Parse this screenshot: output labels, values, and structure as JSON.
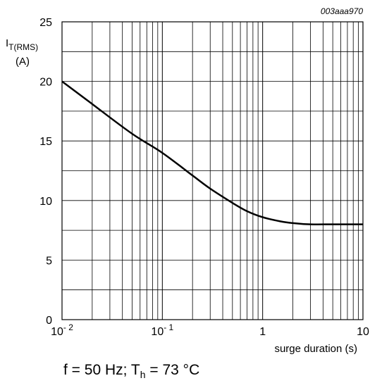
{
  "chart_data": {
    "type": "line",
    "figure_code": "003aaa970",
    "ylabel_main": "I",
    "ylabel_sub": "T(RMS)",
    "ylabel_unit": "(A)",
    "xlabel": "surge duration (s)",
    "x_scale": "log",
    "xlim": [
      0.01,
      10
    ],
    "ylim": [
      0,
      25
    ],
    "yticks": [
      0,
      5,
      10,
      15,
      20,
      25
    ],
    "xticks": [
      {
        "value": 0.01,
        "base": "10",
        "exp": "- 2"
      },
      {
        "value": 0.1,
        "base": "10",
        "exp": "- 1"
      },
      {
        "value": 1,
        "base": "1",
        "exp": ""
      },
      {
        "value": 10,
        "base": "10",
        "exp": ""
      }
    ],
    "grid": true,
    "series": [
      {
        "x": [
          0.01,
          0.02,
          0.05,
          0.1,
          0.2,
          0.3,
          0.5,
          0.7,
          1,
          1.5,
          2,
          3,
          5,
          10
        ],
        "y": [
          20.0,
          18.1,
          15.6,
          14.0,
          12.1,
          11.0,
          9.8,
          9.1,
          8.6,
          8.25,
          8.1,
          8.0,
          8.0,
          8.0
        ]
      }
    ],
    "condition": {
      "f_text": "f = 50 Hz; T",
      "t_sub": "h",
      "t_text": " = 73 °C"
    }
  }
}
